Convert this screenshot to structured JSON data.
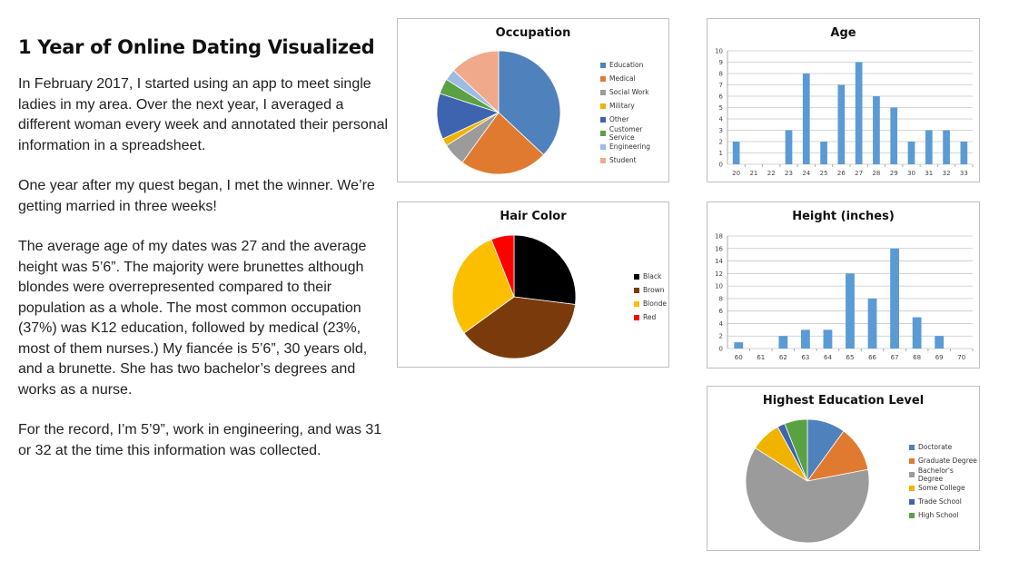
{
  "intro": {
    "title": "1 Year of Online Dating Visualized",
    "paragraphs": [
      "In February 2017, I started using an app to meet single ladies in my area. Over the next year, I averaged a different woman every week and annotated their personal information in a spreadsheet.",
      "One year after my quest began, I met the winner. We’re getting married in three weeks!",
      "The average age of my dates was 27 and the average height was 5’6”. The majority were brunettes although blondes were overrepresented compared to their population as a whole. The most common occupation (37%) was K12 education, followed by medical (23%, most of them nurses.) My fiancée is 5’6”, 30 years old, and a brunette. She has two bachelor’s degrees and works as a nurse.",
      "For the record, I’m 5’9”, work in engineering, and was 31 or 32 at the time this information was collected."
    ]
  },
  "chart_data": [
    {
      "id": "occupation",
      "type": "pie",
      "title": "Occupation",
      "categories": [
        "Education",
        "Medical",
        "Social Work",
        "Military",
        "Other",
        "Customer Service",
        "Engineering",
        "Student"
      ],
      "values": [
        37,
        23,
        6,
        2,
        12,
        4,
        3,
        13
      ],
      "colors": [
        "#4f81bd",
        "#e07a31",
        "#9b9b9b",
        "#f0b400",
        "#3e64b0",
        "#5aa142",
        "#9dbbe3",
        "#f0a98a"
      ],
      "legend_position": "right"
    },
    {
      "id": "age",
      "type": "bar",
      "title": "Age",
      "categories": [
        "20",
        "21",
        "22",
        "23",
        "24",
        "25",
        "26",
        "27",
        "28",
        "29",
        "30",
        "31",
        "32",
        "33"
      ],
      "values": [
        2,
        0,
        0,
        3,
        8,
        2,
        7,
        9,
        6,
        5,
        2,
        3,
        3,
        2
      ],
      "ylim": [
        0,
        10
      ],
      "yticks": [
        0,
        1,
        2,
        3,
        4,
        5,
        6,
        7,
        8,
        9,
        10
      ],
      "grid": true,
      "color": "#5b9bd5",
      "xlabel": "",
      "ylabel": ""
    },
    {
      "id": "hair",
      "type": "pie",
      "title": "Hair Color",
      "categories": [
        "Black",
        "Brown",
        "Blonde",
        "Red"
      ],
      "values": [
        27,
        38,
        29,
        6
      ],
      "colors": [
        "#000000",
        "#7b3a0c",
        "#fbbf00",
        "#ff0000"
      ],
      "legend_position": "right"
    },
    {
      "id": "height",
      "type": "bar",
      "title": "Height (inches)",
      "categories": [
        "60",
        "61",
        "62",
        "63",
        "64",
        "65",
        "66",
        "67",
        "68",
        "69",
        "70"
      ],
      "values": [
        1,
        0,
        2,
        3,
        3,
        12,
        8,
        16,
        5,
        2,
        0
      ],
      "ylim": [
        0,
        18
      ],
      "yticks": [
        0,
        2,
        4,
        6,
        8,
        10,
        12,
        14,
        16,
        18
      ],
      "grid": true,
      "color": "#5b9bd5",
      "xlabel": "",
      "ylabel": ""
    },
    {
      "id": "education",
      "type": "pie",
      "title": "Highest Education Level",
      "categories": [
        "Doctorate",
        "Graduate Degree",
        "Bachelor's Degree",
        "Some College",
        "Trade School",
        "High School"
      ],
      "values": [
        10,
        12,
        62,
        8,
        2,
        6
      ],
      "colors": [
        "#4f81bd",
        "#e07a31",
        "#9b9b9b",
        "#f0b400",
        "#3e64b0",
        "#5aa142"
      ],
      "legend_position": "right"
    }
  ]
}
